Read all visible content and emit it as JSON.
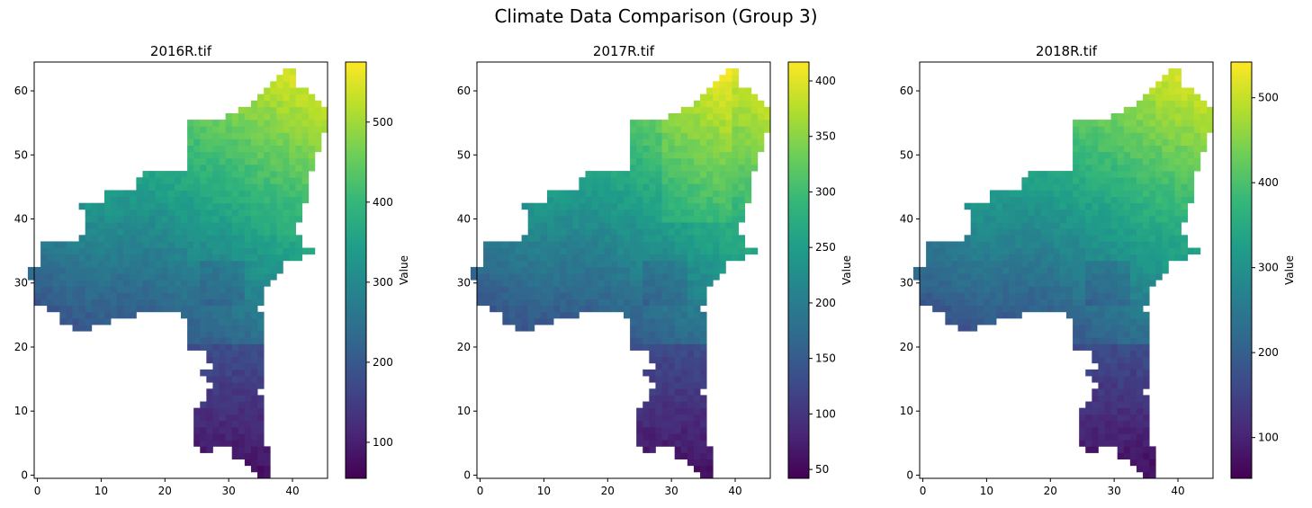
{
  "figure": {
    "suptitle": "Climate Data Comparison (Group 3)"
  },
  "colormap": {
    "name": "viridis",
    "stops": [
      "#440154",
      "#482878",
      "#3e4989",
      "#31688e",
      "#26828e",
      "#1f9e89",
      "#35b779",
      "#6ece58",
      "#b5de2b",
      "#fde725"
    ]
  },
  "map_shape": {
    "description_rows": "per-row filled column ranges of the raster mask (data units: column indices)",
    "rows": [
      [],
      [
        [
          35,
          36
        ]
      ],
      [
        [
          34,
          36
        ]
      ],
      [
        [
          33,
          36
        ]
      ],
      [
        [
          31,
          36
        ]
      ],
      [
        [
          26,
          27
        ],
        [
          31,
          36
        ]
      ],
      [
        [
          25,
          35
        ]
      ],
      [
        [
          25,
          35
        ]
      ],
      [
        [
          25,
          35
        ]
      ],
      [
        [
          25,
          35
        ]
      ],
      [
        [
          25,
          35
        ]
      ],
      [
        [
          25,
          35
        ]
      ],
      [
        [
          26,
          35
        ]
      ],
      [
        [
          27,
          35
        ]
      ],
      [
        [
          27,
          34
        ]
      ],
      [
        [
          28,
          35
        ]
      ],
      [
        [
          27,
          35
        ]
      ],
      [
        [
          26,
          35
        ]
      ],
      [
        [
          28,
          35
        ]
      ],
      [
        [
          27,
          35
        ]
      ],
      [
        [
          27,
          35
        ]
      ],
      [
        [
          24,
          35
        ]
      ],
      [
        [
          24,
          35
        ]
      ],
      [
        [
          24,
          35
        ]
      ],
      [
        [
          6,
          8
        ],
        [
          24,
          35
        ]
      ],
      [
        [
          4,
          11
        ],
        [
          24,
          35
        ]
      ],
      [
        [
          4,
          15
        ],
        [
          23,
          35
        ]
      ],
      [
        [
          2,
          34
        ]
      ],
      [
        [
          0,
          35
        ]
      ],
      [
        [
          0,
          35
        ]
      ],
      [
        [
          0,
          35
        ]
      ],
      [
        [
          0,
          36
        ]
      ],
      [
        [
          -1,
          37
        ]
      ],
      [
        [
          -1,
          38
        ]
      ],
      [
        [
          1,
          38
        ]
      ],
      [
        [
          1,
          41
        ]
      ],
      [
        [
          1,
          43
        ]
      ],
      [
        [
          1,
          41
        ]
      ],
      [
        [
          7,
          41
        ]
      ],
      [
        [
          8,
          39
        ],
        [
          40,
          40
        ]
      ],
      [
        [
          8,
          40
        ]
      ],
      [
        [
          8,
          41
        ]
      ],
      [
        [
          8,
          41
        ]
      ],
      [
        [
          7,
          41
        ]
      ],
      [
        [
          11,
          42
        ]
      ],
      [
        [
          11,
          42
        ]
      ],
      [
        [
          16,
          42
        ]
      ],
      [
        [
          16,
          42
        ]
      ],
      [
        [
          17,
          42
        ]
      ],
      [
        [
          24,
          43
        ]
      ],
      [
        [
          24,
          43
        ]
      ],
      [
        [
          24,
          43
        ]
      ],
      [
        [
          24,
          44
        ]
      ],
      [
        [
          24,
          44
        ]
      ],
      [
        [
          24,
          44
        ]
      ],
      [
        [
          24,
          45
        ]
      ],
      [
        [
          24,
          45
        ]
      ],
      [
        [
          30,
          45
        ]
      ],
      [
        [
          32,
          45
        ]
      ],
      [
        [
          34,
          44
        ]
      ],
      [
        [
          35,
          43
        ]
      ],
      [
        [
          36,
          42
        ]
      ],
      [
        [
          37,
          40
        ]
      ],
      [
        [
          38,
          40
        ]
      ],
      [
        [
          39,
          40
        ]
      ]
    ]
  },
  "chart_data": [
    {
      "type": "heatmap",
      "title": "2016R.tif",
      "xlabel": "",
      "ylabel": "",
      "x_ticks": [
        0,
        10,
        20,
        30,
        40
      ],
      "y_ticks": [
        0,
        10,
        20,
        30,
        40,
        50,
        60
      ],
      "xlim": [
        -0.5,
        45.5
      ],
      "ylim": [
        64.5,
        -0.5
      ],
      "colorbar": {
        "label": "Value",
        "range": [
          55,
          575
        ],
        "ticks": [
          100,
          200,
          300,
          400,
          500
        ]
      },
      "value_field": {
        "north_value": 60,
        "center_value": 280,
        "southeast_value": 575
      }
    },
    {
      "type": "heatmap",
      "title": "2017R.tif",
      "xlabel": "",
      "ylabel": "",
      "x_ticks": [
        0,
        10,
        20,
        30,
        40
      ],
      "y_ticks": [
        0,
        10,
        20,
        30,
        40,
        50,
        60
      ],
      "xlim": [
        -0.5,
        45.5
      ],
      "ylim": [
        64.5,
        -0.5
      ],
      "colorbar": {
        "label": "Value",
        "range": [
          42,
          417
        ],
        "ticks": [
          50,
          100,
          150,
          200,
          250,
          300,
          350,
          400
        ]
      },
      "value_field": {
        "north_value": 45,
        "center_value": 210,
        "southeast_value": 415
      }
    },
    {
      "type": "heatmap",
      "title": "2018R.tif",
      "xlabel": "",
      "ylabel": "",
      "x_ticks": [
        0,
        10,
        20,
        30,
        40
      ],
      "y_ticks": [
        0,
        10,
        20,
        30,
        40,
        50,
        60
      ],
      "xlim": [
        -0.5,
        45.5
      ],
      "ylim": [
        64.5,
        -0.5
      ],
      "colorbar": {
        "label": "Value",
        "range": [
          52,
          542
        ],
        "ticks": [
          100,
          200,
          300,
          400,
          500
        ]
      },
      "value_field": {
        "north_value": 55,
        "center_value": 270,
        "southeast_value": 540
      }
    }
  ]
}
